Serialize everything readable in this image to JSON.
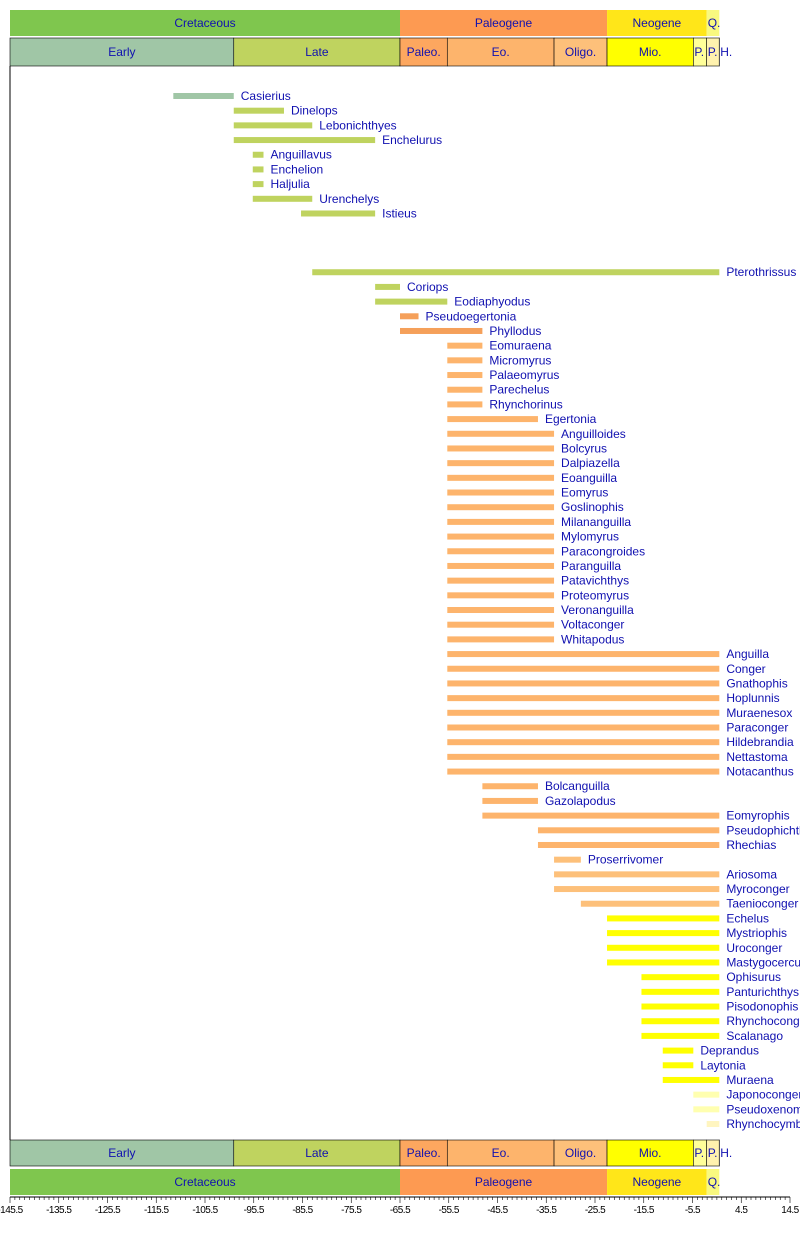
{
  "chart_data": {
    "type": "timeline",
    "xlim": [
      -145.5,
      14.5
    ],
    "xticks": [
      "-145.5",
      "-135.5",
      "-125.5",
      "-115.5",
      "-105.5",
      "-95.5",
      "-85.5",
      "-75.5",
      "-65.5",
      "-55.5",
      "-45.5",
      "-35.5",
      "-25.5",
      "-15.5",
      "-5.5",
      "4.5",
      "14.5"
    ],
    "periods": [
      {
        "label": "Cretaceous",
        "start": -145.5,
        "end": -65.5,
        "color": "#7FC64E"
      },
      {
        "label": "Paleogene",
        "start": -65.5,
        "end": -23.03,
        "color": "#FD9A52"
      },
      {
        "label": "Neogene",
        "start": -23.03,
        "end": -2.588,
        "color": "#FFE619"
      },
      {
        "label": "Q.",
        "start": -2.588,
        "end": 0,
        "color": "#F9F97F"
      }
    ],
    "epochs": [
      {
        "label": "Early",
        "start": -145.5,
        "end": -99.6,
        "color": "#A0C6A6"
      },
      {
        "label": "Late",
        "start": -99.6,
        "end": -65.5,
        "color": "#BFD35F"
      },
      {
        "label": "Paleo.",
        "start": -65.5,
        "end": -55.8,
        "color": "#FDA75F"
      },
      {
        "label": "Eo.",
        "start": -55.8,
        "end": -33.9,
        "color": "#FDB46C"
      },
      {
        "label": "Oligo.",
        "start": -33.9,
        "end": -23.03,
        "color": "#FDC07A"
      },
      {
        "label": "Mio.",
        "start": -23.03,
        "end": -5.332,
        "color": "#FFFF00"
      },
      {
        "label": "P.",
        "start": -5.332,
        "end": -2.588,
        "color": "#FFFF99"
      },
      {
        "label": "P.",
        "start": -2.588,
        "end": -0.0117,
        "color": "#FFF2AE"
      },
      {
        "label": "H.",
        "start": -0.0117,
        "end": 0,
        "color": "#FEF2E0"
      }
    ],
    "series": [
      {
        "name": "Casierius",
        "start": -112,
        "end": -99.6,
        "color": "#A0C6A6"
      },
      {
        "name": "Dinelops",
        "start": -99.6,
        "end": -89.3,
        "color": "#BFD35F"
      },
      {
        "name": "Lebonichthyes",
        "start": -99.6,
        "end": -83.5,
        "color": "#BFD35F"
      },
      {
        "name": "Enchelurus",
        "start": -99.6,
        "end": -70.6,
        "color": "#BFD35F"
      },
      {
        "name": "Anguillavus",
        "start": -95.7,
        "end": -93.5,
        "color": "#BFD35F"
      },
      {
        "name": "Enchelion",
        "start": -95.7,
        "end": -93.5,
        "color": "#BFD35F"
      },
      {
        "name": "Haljulia",
        "start": -95.7,
        "end": -93.5,
        "color": "#BFD35F"
      },
      {
        "name": "Urenchelys",
        "start": -95.7,
        "end": -83.5,
        "color": "#BFD35F"
      },
      {
        "name": "Istieus",
        "start": -85.8,
        "end": -70.6,
        "color": "#BFD35F"
      },
      {
        "name": "",
        "start": null,
        "end": null,
        "color": ""
      },
      {
        "name": "",
        "start": null,
        "end": null,
        "color": ""
      },
      {
        "name": "",
        "start": null,
        "end": null,
        "color": ""
      },
      {
        "name": "Pterothrissus",
        "start": -83.5,
        "end": 0,
        "color": "#BFD35F"
      },
      {
        "name": "Coriops",
        "start": -70.6,
        "end": -65.5,
        "color": "#BFD35F"
      },
      {
        "name": "Eodiaphyodus",
        "start": -70.6,
        "end": -55.8,
        "color": "#BFD35F"
      },
      {
        "name": "Pseudoegertonia",
        "start": -65.5,
        "end": -61.7,
        "color": "#F5A05A"
      },
      {
        "name": "Phyllodus",
        "start": -65.5,
        "end": -48.6,
        "color": "#F5A05A"
      },
      {
        "name": "Eomuraena",
        "start": -55.8,
        "end": -48.6,
        "color": "#FDB46C"
      },
      {
        "name": "Micromyrus",
        "start": -55.8,
        "end": -48.6,
        "color": "#FDB46C"
      },
      {
        "name": "Palaeomyrus",
        "start": -55.8,
        "end": -48.6,
        "color": "#FDB46C"
      },
      {
        "name": "Parechelus",
        "start": -55.8,
        "end": -48.6,
        "color": "#FDB46C"
      },
      {
        "name": "Rhynchorinus",
        "start": -55.8,
        "end": -48.6,
        "color": "#FDB46C"
      },
      {
        "name": "Egertonia",
        "start": -55.8,
        "end": -37.2,
        "color": "#FDB46C"
      },
      {
        "name": "Anguilloides",
        "start": -55.8,
        "end": -33.9,
        "color": "#FDB46C"
      },
      {
        "name": "Bolcyrus",
        "start": -55.8,
        "end": -33.9,
        "color": "#FDB46C"
      },
      {
        "name": "Dalpiazella",
        "start": -55.8,
        "end": -33.9,
        "color": "#FDB46C"
      },
      {
        "name": "Eoanguilla",
        "start": -55.8,
        "end": -33.9,
        "color": "#FDB46C"
      },
      {
        "name": "Eomyrus",
        "start": -55.8,
        "end": -33.9,
        "color": "#FDB46C"
      },
      {
        "name": "Goslinophis",
        "start": -55.8,
        "end": -33.9,
        "color": "#FDB46C"
      },
      {
        "name": "Milananguilla",
        "start": -55.8,
        "end": -33.9,
        "color": "#FDB46C"
      },
      {
        "name": "Mylomyrus",
        "start": -55.8,
        "end": -33.9,
        "color": "#FDB46C"
      },
      {
        "name": "Paracongroides",
        "start": -55.8,
        "end": -33.9,
        "color": "#FDB46C"
      },
      {
        "name": "Paranguilla",
        "start": -55.8,
        "end": -33.9,
        "color": "#FDB46C"
      },
      {
        "name": "Patavichthys",
        "start": -55.8,
        "end": -33.9,
        "color": "#FDB46C"
      },
      {
        "name": "Proteomyrus",
        "start": -55.8,
        "end": -33.9,
        "color": "#FDB46C"
      },
      {
        "name": "Veronanguilla",
        "start": -55.8,
        "end": -33.9,
        "color": "#FDB46C"
      },
      {
        "name": "Voltaconger",
        "start": -55.8,
        "end": -33.9,
        "color": "#FDB46C"
      },
      {
        "name": "Whitapodus",
        "start": -55.8,
        "end": -33.9,
        "color": "#FDB46C"
      },
      {
        "name": "Anguilla",
        "start": -55.8,
        "end": 0,
        "color": "#FDB46C"
      },
      {
        "name": "Conger",
        "start": -55.8,
        "end": 0,
        "color": "#FDB46C"
      },
      {
        "name": "Gnathophis",
        "start": -55.8,
        "end": 0,
        "color": "#FDB46C"
      },
      {
        "name": "Hoplunnis",
        "start": -55.8,
        "end": 0,
        "color": "#FDB46C"
      },
      {
        "name": "Muraenesox",
        "start": -55.8,
        "end": 0,
        "color": "#FDB46C"
      },
      {
        "name": "Paraconger",
        "start": -55.8,
        "end": 0,
        "color": "#FDB46C"
      },
      {
        "name": "Hildebrandia",
        "start": -55.8,
        "end": 0,
        "color": "#FDB46C"
      },
      {
        "name": "Nettastoma",
        "start": -55.8,
        "end": 0,
        "color": "#FDB46C"
      },
      {
        "name": "Notacanthus",
        "start": -55.8,
        "end": 0,
        "color": "#FDB46C"
      },
      {
        "name": "Bolcanguilla",
        "start": -48.6,
        "end": -37.2,
        "color": "#FDB46C"
      },
      {
        "name": "Gazolapodus",
        "start": -48.6,
        "end": -37.2,
        "color": "#FDB46C"
      },
      {
        "name": "Eomyrophis",
        "start": -48.6,
        "end": 0,
        "color": "#FDB46C"
      },
      {
        "name": "Pseudophichthys",
        "start": -37.2,
        "end": 0,
        "color": "#FDB46C"
      },
      {
        "name": "Rhechias",
        "start": -37.2,
        "end": 0,
        "color": "#FDB46C"
      },
      {
        "name": "Proserrivomer",
        "start": -33.9,
        "end": -28.4,
        "color": "#FDC07A"
      },
      {
        "name": "Ariosoma",
        "start": -33.9,
        "end": 0,
        "color": "#FDC07A"
      },
      {
        "name": "Myroconger",
        "start": -33.9,
        "end": 0,
        "color": "#FDC07A"
      },
      {
        "name": "Taenioconger",
        "start": -28.4,
        "end": 0,
        "color": "#FDC07A"
      },
      {
        "name": "Echelus",
        "start": -23.03,
        "end": 0,
        "color": "#FFFF00"
      },
      {
        "name": "Mystriophis",
        "start": -23.03,
        "end": 0,
        "color": "#FFFF00"
      },
      {
        "name": "Uroconger",
        "start": -23.03,
        "end": 0,
        "color": "#FFFF00"
      },
      {
        "name": "Mastygocercus",
        "start": -23.03,
        "end": 0,
        "color": "#FFFF00"
      },
      {
        "name": "Ophisurus",
        "start": -15.97,
        "end": 0,
        "color": "#FFFF00"
      },
      {
        "name": "Panturichthys",
        "start": -15.97,
        "end": 0,
        "color": "#FFFF00"
      },
      {
        "name": "Pisodonophis",
        "start": -15.97,
        "end": 0,
        "color": "#FFFF00"
      },
      {
        "name": "Rhynchoconger",
        "start": -15.97,
        "end": 0,
        "color": "#FFFF00"
      },
      {
        "name": "Scalanago",
        "start": -15.97,
        "end": 0,
        "color": "#FFFF00"
      },
      {
        "name": "Deprandus",
        "start": -11.6,
        "end": -5.332,
        "color": "#FFFF00"
      },
      {
        "name": "Laytonia",
        "start": -11.6,
        "end": -5.332,
        "color": "#FFFF00"
      },
      {
        "name": "Muraena",
        "start": -11.6,
        "end": 0,
        "color": "#FFFF00"
      },
      {
        "name": "Japonoconger",
        "start": -5.332,
        "end": 0,
        "color": "#FFFFB0"
      },
      {
        "name": "Pseudoxenomystax",
        "start": -5.332,
        "end": 0,
        "color": "#FFFFB0"
      },
      {
        "name": "Rhynchocymba",
        "start": -2.588,
        "end": 0,
        "color": "#FFF5C0"
      }
    ],
    "label_color": "#1010B0"
  }
}
